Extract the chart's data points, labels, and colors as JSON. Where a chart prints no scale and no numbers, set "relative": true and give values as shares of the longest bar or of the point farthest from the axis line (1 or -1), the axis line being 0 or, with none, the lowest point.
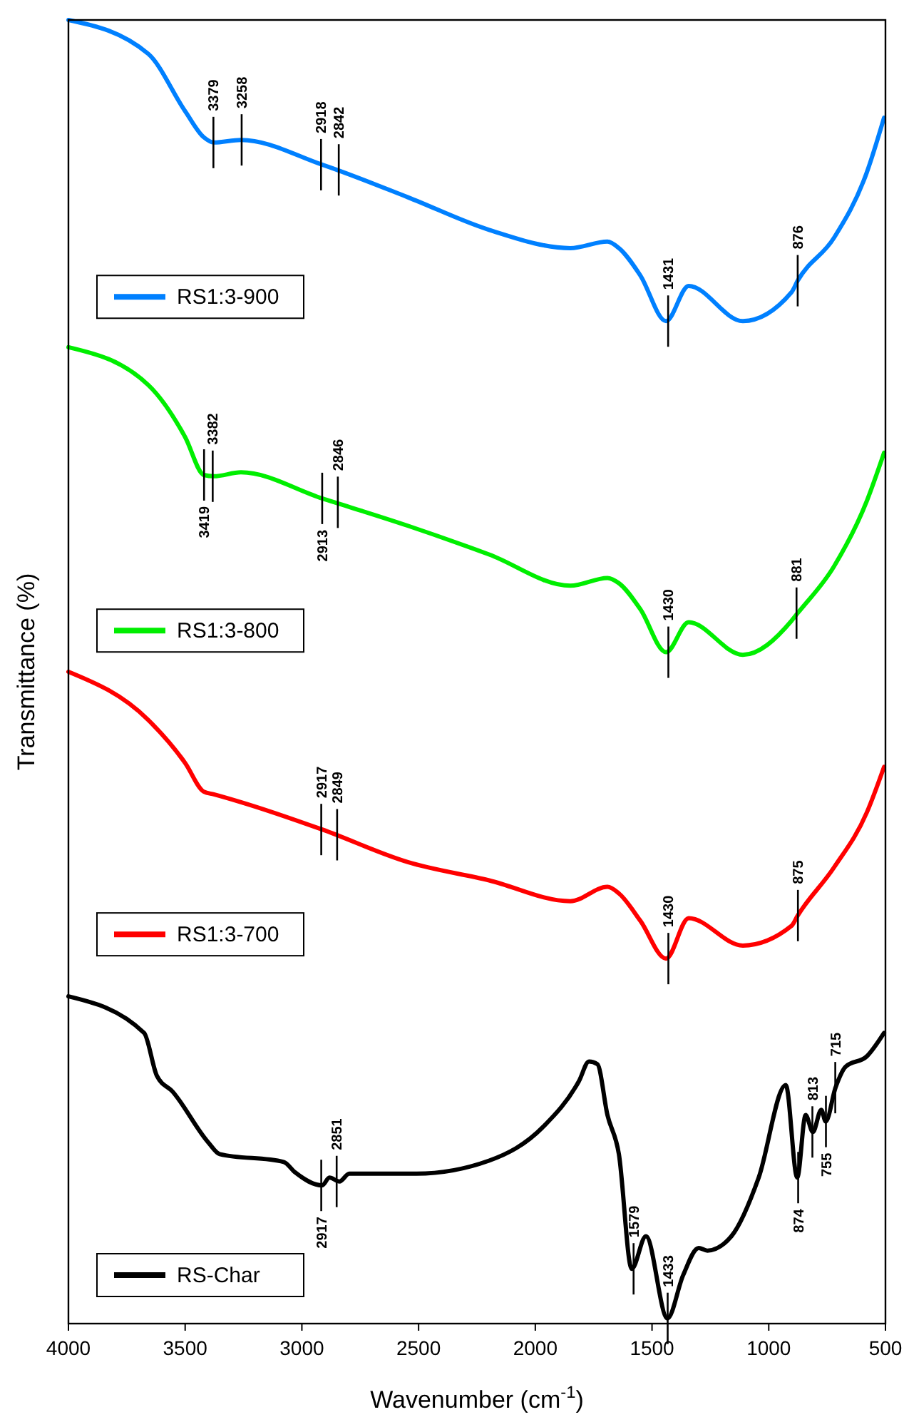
{
  "chart_data": {
    "type": "line",
    "relative": true,
    "xlabel": "Wavenumber (cm$^{-1}$)",
    "ylabel": "Transmittance (%)",
    "xlim": [
      4000,
      500
    ],
    "xticks": [
      4000,
      3500,
      3000,
      2500,
      2000,
      1500,
      1000,
      500
    ],
    "legend": "left",
    "grid": false,
    "x": [
      4000,
      3658,
      3500,
      3420,
      3377,
      3261,
      2913,
      2546,
      2198,
      1850,
      1691,
      1642,
      1550,
      1440,
      1343,
      1111,
      903,
      876,
      720,
      580,
      506
    ],
    "series": [
      {
        "name": "RS1:3-900",
        "color": "#0080ff",
        "values": [
          1.0,
          0.974,
          0.93,
          0.91,
          0.906,
          0.908,
          0.889,
          0.864,
          0.839,
          0.825,
          0.83,
          0.825,
          0.804,
          0.769,
          0.796,
          0.769,
          0.791,
          0.8,
          0.833,
          0.883,
          0.925
        ]
      },
      {
        "name": "RS1:3-800",
        "color": "#00ee00",
        "values": [
          0.749,
          0.72,
          0.68,
          0.651,
          0.65,
          0.653,
          0.633,
          0.612,
          0.59,
          0.566,
          0.572,
          0.568,
          0.548,
          0.515,
          0.538,
          0.513,
          0.539,
          0.545,
          0.581,
          0.631,
          0.668
        ]
      },
      {
        "name": "RS1:3-700",
        "color": "#ff0000",
        "values": [
          0.5,
          0.463,
          0.43,
          0.408,
          0.406,
          0.4,
          0.379,
          0.354,
          0.34,
          0.324,
          0.335,
          0.33,
          0.309,
          0.28,
          0.311,
          0.29,
          0.305,
          0.313,
          0.35,
          0.392,
          0.427
        ]
      },
      {
        "name": "RS-Char",
        "color": "#000000",
        "x": [
          4000,
          3676,
          3621,
          3554,
          3401,
          3352,
          3078,
          3029,
          2913,
          2882,
          2839,
          2797,
          2509,
          2198,
          1966,
          1813,
          1770,
          1734,
          1691,
          1642,
          1587,
          1526,
          1434,
          1367,
          1300,
          1263,
          1160,
          1043,
          927,
          878,
          842,
          811,
          775,
          756,
          714,
          671,
          580,
          506
        ],
        "values": [
          0.251,
          0.223,
          0.19,
          0.178,
          0.139,
          0.13,
          0.124,
          0.116,
          0.106,
          0.112,
          0.109,
          0.115,
          0.115,
          0.125,
          0.151,
          0.186,
          0.201,
          0.199,
          0.16,
          0.13,
          0.042,
          0.067,
          0.004,
          0.037,
          0.058,
          0.056,
          0.067,
          0.112,
          0.183,
          0.112,
          0.16,
          0.147,
          0.164,
          0.155,
          0.181,
          0.197,
          0.205,
          0.223
        ]
      }
    ],
    "annotations": [
      {
        "text": "3379",
        "x": 3379,
        "y": 0.906
      },
      {
        "text": "3258",
        "x": 3258,
        "y": 0.908
      },
      {
        "text": "2918",
        "x": 2918,
        "y": 0.889
      },
      {
        "text": "2842",
        "x": 2842,
        "y": 0.885
      },
      {
        "text": "1431",
        "x": 1431,
        "y": 0.769
      },
      {
        "text": "876",
        "x": 876,
        "y": 0.8
      },
      {
        "text": "3419",
        "x": 3419,
        "y": 0.651
      },
      {
        "text": "3382",
        "x": 3382,
        "y": 0.65
      },
      {
        "text": "2913",
        "x": 2913,
        "y": 0.633
      },
      {
        "text": "2846",
        "x": 2846,
        "y": 0.63
      },
      {
        "text": "1430",
        "x": 1430,
        "y": 0.515
      },
      {
        "text": "881",
        "x": 881,
        "y": 0.545
      },
      {
        "text": "2917",
        "x": 2917,
        "y": 0.379
      },
      {
        "text": "2849",
        "x": 2849,
        "y": 0.375
      },
      {
        "text": "1430",
        "x": 1430,
        "y": 0.28
      },
      {
        "text": "875",
        "x": 875,
        "y": 0.313
      },
      {
        "text": "2917",
        "x": 2917,
        "y": 0.106
      },
      {
        "text": "2851",
        "x": 2851,
        "y": 0.109
      },
      {
        "text": "1579",
        "x": 1579,
        "y": 0.042
      },
      {
        "text": "1433",
        "x": 1433,
        "y": 0.004
      },
      {
        "text": "874",
        "x": 874,
        "y": 0.112
      },
      {
        "text": "813",
        "x": 813,
        "y": 0.147
      },
      {
        "text": "755",
        "x": 755,
        "y": 0.155
      },
      {
        "text": "715",
        "x": 715,
        "y": 0.181
      }
    ]
  }
}
